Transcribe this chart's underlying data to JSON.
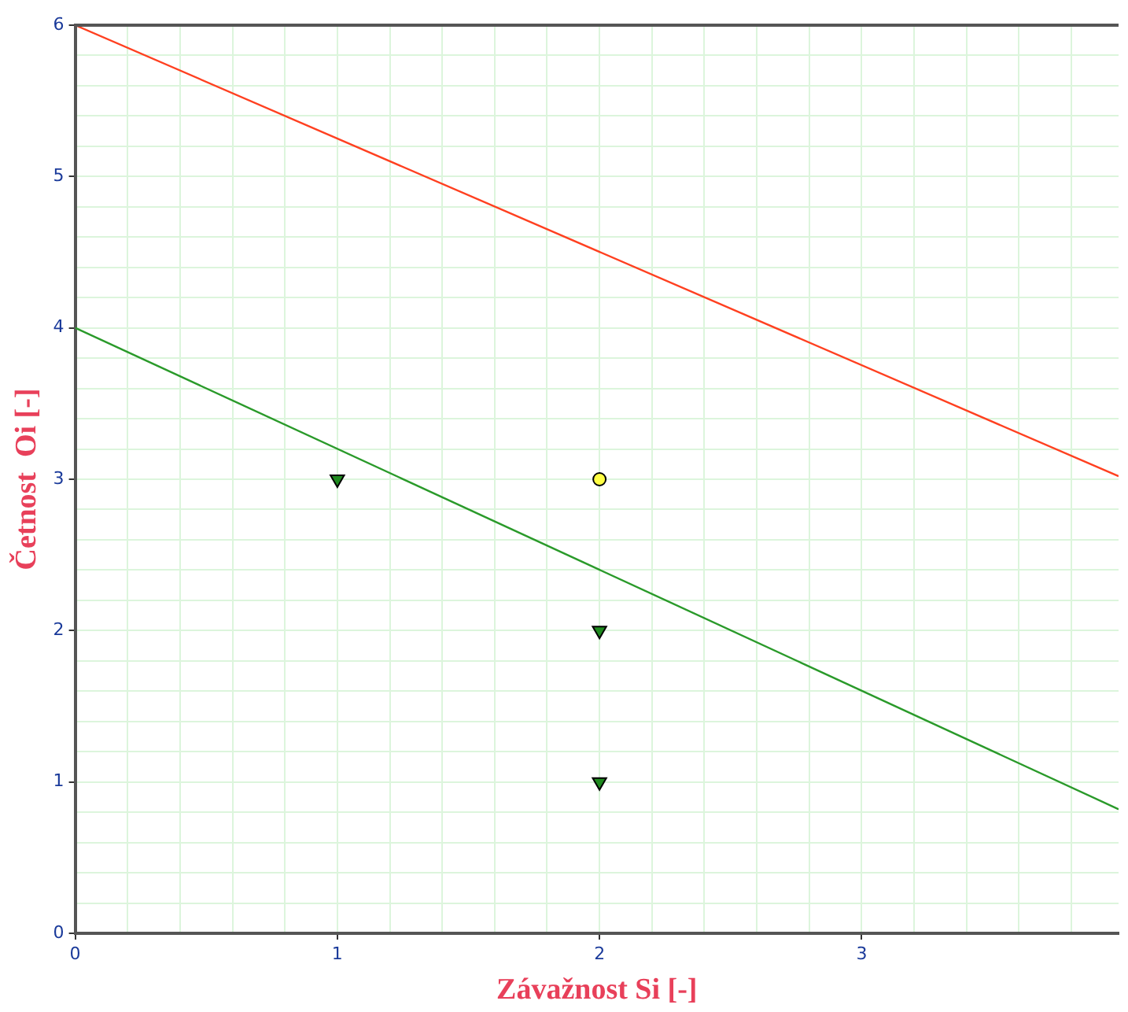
{
  "chart_data": {
    "type": "scatter",
    "xlabel": "Závažnost Si [-]",
    "ylabel": "Četnost  Oi [-]",
    "xlim": [
      0,
      3.98
    ],
    "ylim": [
      0,
      6
    ],
    "xticks": [
      0,
      {
        "value": 0.2,
        "label": null
      },
      {
        "value": 0.4,
        "label": null
      },
      {
        "value": 0.6,
        "label": null
      },
      {
        "value": 0.8,
        "label": null
      },
      1,
      {
        "value": 1.2,
        "label": null
      },
      {
        "value": 1.4,
        "label": null
      },
      {
        "value": 1.6,
        "label": null
      },
      {
        "value": 1.8,
        "label": null
      },
      2,
      {
        "value": 2.2,
        "label": null
      },
      {
        "value": 2.4,
        "label": null
      },
      {
        "value": 2.6,
        "label": null
      },
      {
        "value": 2.8,
        "label": null
      },
      3,
      {
        "value": 3.2,
        "label": null
      },
      {
        "value": 3.4,
        "label": null
      },
      {
        "value": 3.6,
        "label": null
      },
      {
        "value": 3.8,
        "label": null
      }
    ],
    "yticks": [
      0,
      {
        "value": 0.2,
        "label": null
      },
      {
        "value": 0.4,
        "label": null
      },
      {
        "value": 0.6,
        "label": null
      },
      {
        "value": 0.8,
        "label": null
      },
      1,
      {
        "value": 1.2,
        "label": null
      },
      {
        "value": 1.4,
        "label": null
      },
      {
        "value": 1.6,
        "label": null
      },
      {
        "value": 1.8,
        "label": null
      },
      2,
      {
        "value": 2.2,
        "label": null
      },
      {
        "value": 2.4,
        "label": null
      },
      {
        "value": 2.6,
        "label": null
      },
      {
        "value": 2.8,
        "label": null
      },
      3,
      {
        "value": 3.2,
        "label": null
      },
      {
        "value": 3.4,
        "label": null
      },
      {
        "value": 3.6,
        "label": null
      },
      {
        "value": 3.8,
        "label": null
      },
      4,
      {
        "value": 4.2,
        "label": null
      },
      {
        "value": 4.4,
        "label": null
      },
      {
        "value": 4.6,
        "label": null
      },
      {
        "value": 4.8,
        "label": null
      },
      5,
      {
        "value": 5.2,
        "label": null
      },
      {
        "value": 5.4,
        "label": null
      },
      {
        "value": 5.6,
        "label": null
      },
      {
        "value": 5.8,
        "label": null
      },
      6
    ],
    "grid": true,
    "series": [
      {
        "type": "line",
        "color": "#ff4020",
        "x": [
          0,
          3.98
        ],
        "values": [
          6,
          3.02
        ],
        "marker": "none"
      },
      {
        "type": "line",
        "color": "#2a9a2a",
        "x": [
          0,
          3.98
        ],
        "values": [
          4,
          0.82
        ],
        "marker": "none"
      },
      {
        "color": "#1f8a1f",
        "x": [
          1,
          2,
          2
        ],
        "values": [
          3,
          2,
          1
        ],
        "marker": "triangle"
      },
      {
        "color": "#ffff44",
        "x": [
          2
        ],
        "values": [
          3
        ],
        "marker": "circle"
      }
    ]
  }
}
